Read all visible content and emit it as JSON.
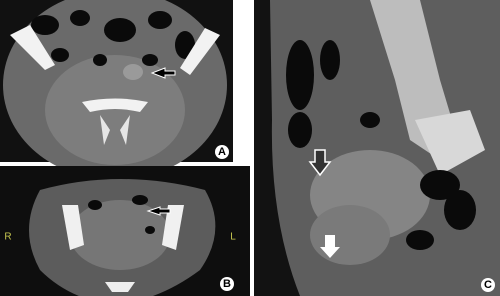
{
  "panels": [
    {
      "label": "A"
    },
    {
      "label": "B",
      "left_marker": "R",
      "right_marker": "L"
    },
    {
      "label": "C"
    }
  ]
}
